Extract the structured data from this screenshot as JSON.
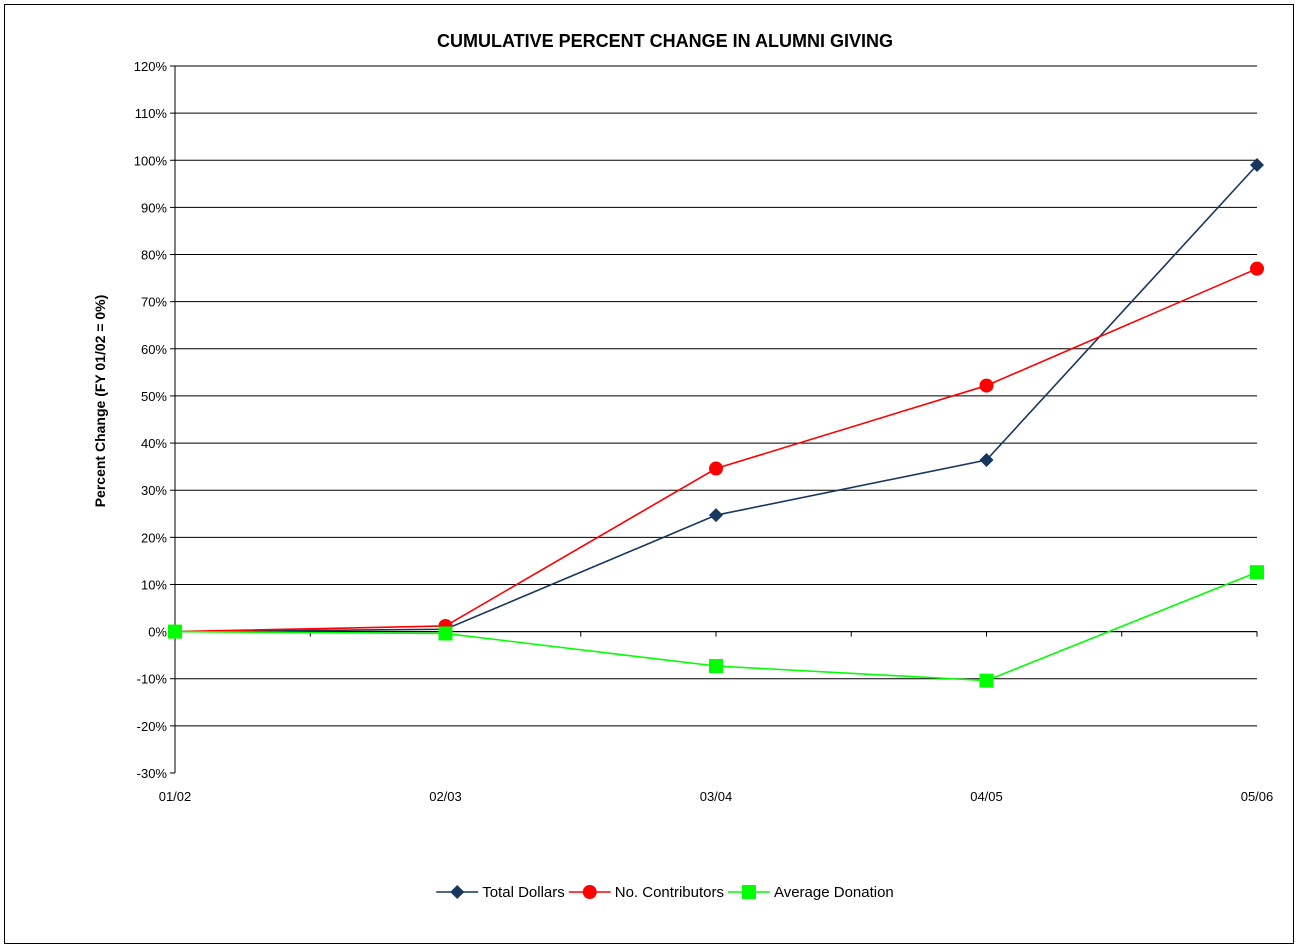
{
  "chart_data": {
    "type": "line",
    "title": "CUMULATIVE PERCENT CHANGE IN ALUMNI GIVING",
    "xlabel": "",
    "ylabel": "Percent Change (FY 01/02 = 0%)",
    "categories": [
      "01/02",
      "02/03",
      "03/04",
      "04/05",
      "05/06"
    ],
    "ylim": [
      -30,
      120
    ],
    "ytick_step": 10,
    "ytick_suffix": "%",
    "grid": true,
    "legend_position": "bottom",
    "series": [
      {
        "name": "Total Dollars",
        "values": [
          0,
          0.5,
          24.7,
          36.4,
          99
        ],
        "color": "#17375e",
        "marker": "diamond"
      },
      {
        "name": "No. Contributors",
        "values": [
          0,
          1.2,
          34.6,
          52.2,
          77
        ],
        "color": "#ff0000",
        "marker": "circle"
      },
      {
        "name": "Average Donation",
        "values": [
          0,
          -0.4,
          -7.3,
          -10.4,
          12.6
        ],
        "color": "#00ff00",
        "marker": "square"
      }
    ]
  }
}
